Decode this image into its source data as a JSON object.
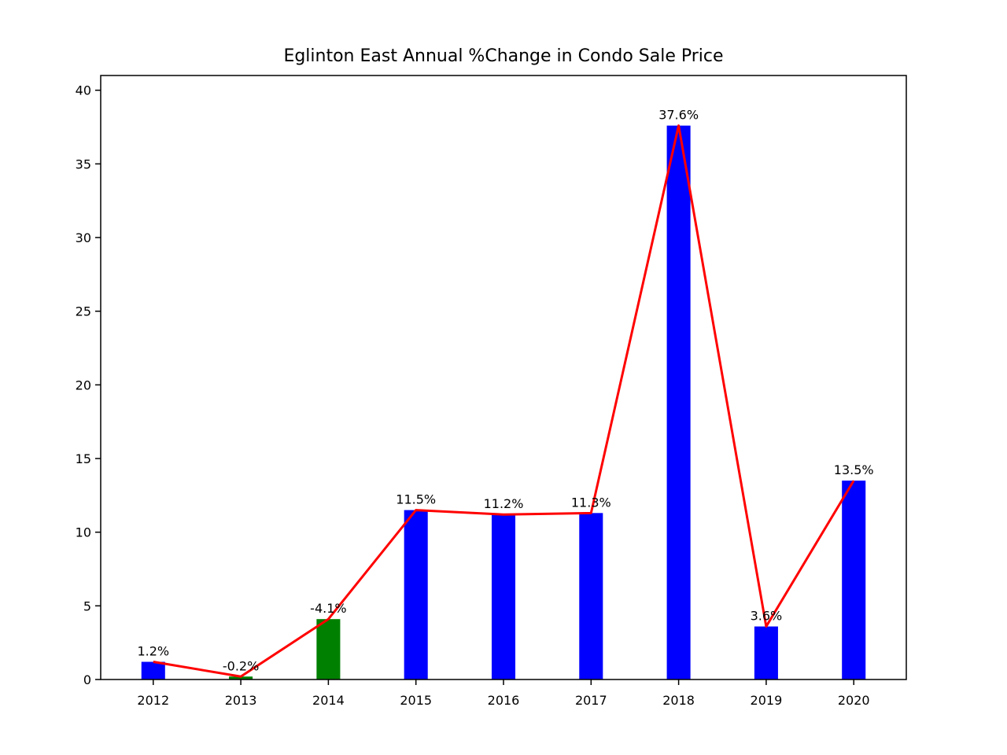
{
  "chart_data": {
    "type": "bar",
    "title": "Eglinton East Annual %Change in Condo Sale Price",
    "xlabel": "",
    "ylabel": "",
    "categories": [
      "2012",
      "2013",
      "2014",
      "2015",
      "2016",
      "2017",
      "2018",
      "2019",
      "2020"
    ],
    "values": [
      1.2,
      0.2,
      4.1,
      11.5,
      11.2,
      11.3,
      37.6,
      3.6,
      13.5
    ],
    "labels": [
      "1.2%",
      "-0.2%",
      "-4.1%",
      "11.5%",
      "11.2%",
      "11.3%",
      "37.6%",
      "3.6%",
      "13.5%"
    ],
    "bar_colors": [
      "#0000ff",
      "#008000",
      "#008000",
      "#0000ff",
      "#0000ff",
      "#0000ff",
      "#0000ff",
      "#0000ff",
      "#0000ff"
    ],
    "line_color": "#ff0000",
    "ylim": [
      0,
      41
    ],
    "yticks": [
      0,
      5,
      10,
      15,
      20,
      25,
      30,
      35,
      40
    ],
    "grid": false
  }
}
